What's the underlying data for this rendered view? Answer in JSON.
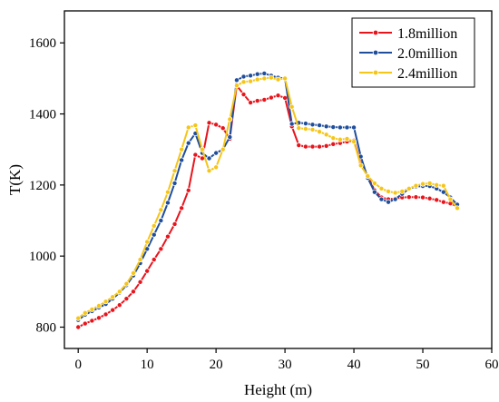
{
  "chart_data": {
    "type": "line",
    "title": "",
    "xlabel": "Height (m)",
    "ylabel": "T(K)",
    "xlim": [
      -2,
      60
    ],
    "ylim": [
      740,
      1690
    ],
    "xticks": [
      0,
      10,
      20,
      30,
      40,
      50,
      60
    ],
    "yticks": [
      800,
      1000,
      1200,
      1400,
      1600
    ],
    "grid": false,
    "legend_position": "top-right",
    "series": [
      {
        "name": "1.8million",
        "color": "#e8141c",
        "x": [
          0,
          1,
          2,
          3,
          4,
          5,
          6,
          7,
          8,
          9,
          10,
          11,
          12,
          13,
          14,
          15,
          16,
          17,
          18,
          19,
          20,
          21,
          22,
          23,
          24,
          25,
          26,
          27,
          28,
          29,
          30,
          31,
          32,
          33,
          34,
          35,
          36,
          37,
          38,
          39,
          40,
          41,
          42,
          43,
          44,
          45,
          46,
          47,
          48,
          49,
          50,
          51,
          52,
          53,
          54,
          55
        ],
        "values": [
          800,
          810,
          818,
          826,
          836,
          848,
          862,
          880,
          900,
          927,
          958,
          990,
          1020,
          1055,
          1090,
          1135,
          1185,
          1285,
          1275,
          1375,
          1370,
          1360,
          1330,
          1480,
          1455,
          1432,
          1437,
          1440,
          1446,
          1452,
          1445,
          1365,
          1312,
          1308,
          1308,
          1308,
          1310,
          1315,
          1318,
          1322,
          1325,
          1260,
          1225,
          1185,
          1165,
          1160,
          1162,
          1165,
          1166,
          1166,
          1165,
          1162,
          1158,
          1152,
          1148,
          1140
        ]
      },
      {
        "name": "2.0million",
        "color": "#1f4e9c",
        "x": [
          0,
          1,
          2,
          3,
          4,
          5,
          6,
          7,
          8,
          9,
          10,
          11,
          12,
          13,
          14,
          15,
          16,
          17,
          18,
          19,
          20,
          21,
          22,
          23,
          24,
          25,
          26,
          27,
          28,
          29,
          30,
          31,
          32,
          33,
          34,
          35,
          36,
          37,
          38,
          39,
          40,
          41,
          42,
          43,
          44,
          45,
          46,
          47,
          48,
          49,
          50,
          51,
          52,
          53,
          54,
          55
        ],
        "values": [
          820,
          835,
          845,
          855,
          865,
          880,
          897,
          918,
          945,
          980,
          1020,
          1060,
          1100,
          1150,
          1205,
          1270,
          1318,
          1345,
          1290,
          1275,
          1290,
          1300,
          1335,
          1495,
          1505,
          1508,
          1512,
          1514,
          1508,
          1502,
          1500,
          1372,
          1375,
          1373,
          1370,
          1368,
          1365,
          1363,
          1362,
          1362,
          1362,
          1280,
          1220,
          1180,
          1160,
          1152,
          1160,
          1175,
          1190,
          1195,
          1197,
          1197,
          1190,
          1180,
          1165,
          1145
        ]
      },
      {
        "name": "2.4million",
        "color": "#f5c518",
        "x": [
          0,
          1,
          2,
          3,
          4,
          5,
          6,
          7,
          8,
          9,
          10,
          11,
          12,
          13,
          14,
          15,
          16,
          17,
          18,
          19,
          20,
          21,
          22,
          23,
          24,
          25,
          26,
          27,
          28,
          29,
          30,
          31,
          32,
          33,
          34,
          35,
          36,
          37,
          38,
          39,
          40,
          41,
          42,
          43,
          44,
          45,
          46,
          47,
          48,
          49,
          50,
          51,
          52,
          53,
          54,
          55
        ],
        "values": [
          825,
          840,
          850,
          860,
          872,
          885,
          900,
          922,
          952,
          990,
          1040,
          1085,
          1130,
          1180,
          1240,
          1300,
          1362,
          1368,
          1300,
          1240,
          1250,
          1300,
          1385,
          1480,
          1490,
          1492,
          1497,
          1500,
          1502,
          1497,
          1500,
          1420,
          1360,
          1358,
          1356,
          1350,
          1342,
          1332,
          1328,
          1330,
          1322,
          1255,
          1225,
          1205,
          1190,
          1182,
          1178,
          1182,
          1190,
          1198,
          1203,
          1205,
          1200,
          1198,
          1160,
          1135
        ]
      }
    ]
  }
}
